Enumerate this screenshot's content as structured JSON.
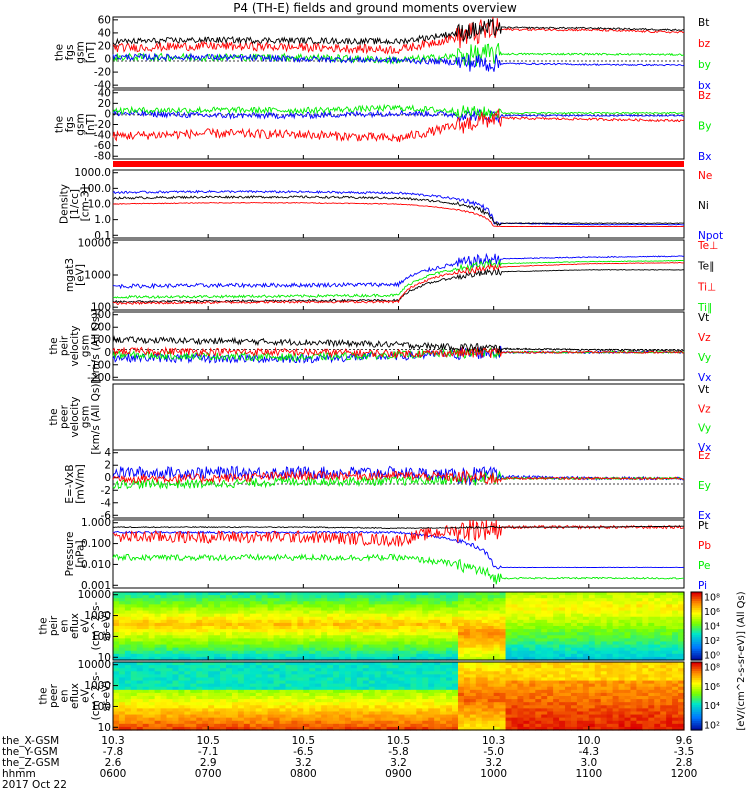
{
  "title": "P4 (TH-E) fields and ground moments overview",
  "colors": {
    "black": "#000000",
    "red": "#ff0000",
    "green": "#00ee00",
    "blue": "#0000ff"
  },
  "panels": [
    {
      "key": "fgs_gsm",
      "ylabel_lines": [
        "the",
        "fgs",
        "gsm",
        "[nT]"
      ],
      "ticks": [
        "60",
        "40",
        "20",
        "0",
        "-20",
        "-40"
      ],
      "legend": [
        {
          "text": "Bt",
          "color": "black"
        },
        {
          "text": "bz",
          "color": "red"
        },
        {
          "text": "by",
          "color": "green"
        },
        {
          "text": "bx",
          "color": "blue"
        }
      ]
    },
    {
      "key": "fgs_gsm2",
      "ylabel_lines": [
        "the",
        "fgs",
        "gsm",
        "[nT]"
      ],
      "ticks": [
        "40",
        "20",
        "0",
        "-20",
        "-40",
        "-60",
        "-80"
      ],
      "legend": [
        {
          "text": "Bz",
          "color": "red"
        },
        {
          "text": "By",
          "color": "green"
        },
        {
          "text": "Bx",
          "color": "blue"
        }
      ]
    },
    {
      "key": "density",
      "ylabel_lines": [
        "Density",
        "[1/cc]",
        "[cm-3]"
      ],
      "ticks": [
        "1000.0",
        "100.0",
        "10.0",
        "1.0",
        "0.1"
      ],
      "legend": [
        {
          "text": "Ne",
          "color": "red"
        },
        {
          "text": "Ni",
          "color": "black"
        },
        {
          "text": "Npot",
          "color": "blue"
        }
      ]
    },
    {
      "key": "temperature",
      "ylabel_lines": [
        "mgat3",
        "[eV]"
      ],
      "ticks": [
        "10000",
        "1000",
        "100"
      ],
      "legend": [
        {
          "text": "Te⊥",
          "color": "red"
        },
        {
          "text": "Te∥",
          "color": "black"
        },
        {
          "text": "Ti⊥",
          "color": "red"
        },
        {
          "text": "Ti∥",
          "color": "green"
        }
      ]
    },
    {
      "key": "peir_vel",
      "ylabel_lines": [
        "the",
        "peir",
        "velocity",
        "gsm",
        "[km/s (All Qs)]"
      ],
      "ticks": [
        "300",
        "200",
        "100",
        "0",
        "-100",
        "-200"
      ],
      "legend": [
        {
          "text": "Vt",
          "color": "black"
        },
        {
          "text": "Vz",
          "color": "red"
        },
        {
          "text": "Vy",
          "color": "green"
        },
        {
          "text": "Vx",
          "color": "blue"
        }
      ]
    },
    {
      "key": "peer_vel",
      "ylabel_lines": [
        "the",
        "peer",
        "velocity",
        "gsm",
        "[km/s (All Qs)]"
      ],
      "ticks": [],
      "legend": [
        {
          "text": "Vt",
          "color": "black"
        },
        {
          "text": "Vz",
          "color": "red"
        },
        {
          "text": "Vy",
          "color": "green"
        },
        {
          "text": "Vx",
          "color": "blue"
        }
      ]
    },
    {
      "key": "efield",
      "ylabel_lines": [
        "E=-VxB",
        "[mV/m]"
      ],
      "ticks": [
        "4",
        "2",
        "0",
        "-2",
        "-4",
        "-6"
      ],
      "legend": [
        {
          "text": "Ez",
          "color": "red"
        },
        {
          "text": "Ey",
          "color": "green"
        },
        {
          "text": "Ex",
          "color": "blue"
        }
      ]
    },
    {
      "key": "pressure",
      "ylabel_lines": [
        "Pressure",
        "[nPa]"
      ],
      "ticks": [
        "1.000",
        "0.100",
        "0.010",
        "0.001"
      ],
      "legend": [
        {
          "text": "Pt",
          "color": "black"
        },
        {
          "text": "Pb",
          "color": "red"
        },
        {
          "text": "Pe",
          "color": "green"
        },
        {
          "text": "Pi",
          "color": "blue"
        }
      ]
    },
    {
      "key": "peir_spec",
      "ylabel_lines": [
        "the",
        "peir",
        "en",
        "eflux",
        "eV",
        "(cm^2-s-",
        "sr-eV)"
      ],
      "ticks": [
        "10000",
        "1000",
        "100",
        "10"
      ],
      "legend": []
    },
    {
      "key": "peer_spec",
      "ylabel_lines": [
        "the",
        "peer",
        "en",
        "eflux",
        "eV",
        "(cm^2-s-",
        "sr-eV)"
      ],
      "ticks": [
        "10000",
        "1000",
        "100",
        "10"
      ],
      "legend": []
    }
  ],
  "colorbar": {
    "ticks": [
      "10⁸",
      "10⁶",
      "10⁴",
      "10²",
      "10⁰",
      "10⁸",
      "10⁶",
      "10⁴",
      "10²"
    ],
    "label": "[eV/(cm^2-s-sr-eV)] (All Qs)"
  },
  "xaxis": {
    "row_labels": [
      "the_X-GSM",
      "the_Y-GSM",
      "the_Z-GSM",
      "hhmm",
      "2017 Oct 22"
    ],
    "columns": [
      {
        "x": "10.3",
        "y": "-7.8",
        "z": "2.6",
        "t": "0600"
      },
      {
        "x": "10.5",
        "y": "-7.1",
        "z": "2.9",
        "t": "0700"
      },
      {
        "x": "10.5",
        "y": "-6.5",
        "z": "3.2",
        "t": "0800"
      },
      {
        "x": "10.5",
        "y": "-5.8",
        "z": "3.2",
        "t": "0900"
      },
      {
        "x": "10.3",
        "y": "-5.0",
        "z": "3.2",
        "t": "1000"
      },
      {
        "x": "10.0",
        "y": "-4.3",
        "z": "3.0",
        "t": "1100"
      },
      {
        "x": "9.6",
        "y": "-3.5",
        "z": "2.8",
        "t": "1200"
      }
    ]
  },
  "chart_data": {
    "type": "line",
    "title": "P4 (TH-E) fields and ground moments overview",
    "x": [
      "0600",
      "0700",
      "0800",
      "0900",
      "1000",
      "1100",
      "1200"
    ],
    "series": [
      {
        "name": "Bt",
        "values": [
          25,
          28,
          27,
          25,
          48,
          47,
          44
        ]
      },
      {
        "name": "bz",
        "values": [
          15,
          18,
          16,
          12,
          45,
          44,
          40
        ]
      },
      {
        "name": "by",
        "values": [
          0,
          0,
          0,
          -5,
          5,
          5,
          4
        ]
      },
      {
        "name": "bx",
        "values": [
          0,
          0,
          -3,
          -5,
          -10,
          -12,
          -13
        ]
      },
      {
        "name": "Bz",
        "values": [
          -45,
          -40,
          -42,
          -50,
          -10,
          -12,
          -15
        ]
      },
      {
        "name": "By",
        "values": [
          5,
          6,
          5,
          10,
          0,
          0,
          0
        ]
      },
      {
        "name": "Bx",
        "values": [
          0,
          -5,
          -5,
          0,
          -5,
          -5,
          -5
        ]
      },
      {
        "name": "Ne",
        "values": [
          10,
          12,
          12,
          10,
          0.3,
          0.3,
          0.3
        ]
      },
      {
        "name": "Ni",
        "values": [
          25,
          30,
          30,
          25,
          0.5,
          0.5,
          0.5
        ]
      },
      {
        "name": "Npot",
        "values": [
          60,
          70,
          65,
          55,
          0.5,
          0.4,
          0.4
        ]
      },
      {
        "name": "Te⊥",
        "values": [
          70,
          75,
          80,
          80,
          1500,
          2000,
          2200
        ]
      },
      {
        "name": "Te∥",
        "values": [
          80,
          85,
          90,
          90,
          1000,
          1200,
          1200
        ]
      },
      {
        "name": "Ti⊥",
        "values": [
          300,
          320,
          330,
          350,
          3000,
          3500,
          3800
        ]
      },
      {
        "name": "Ti∥",
        "values": [
          120,
          125,
          130,
          140,
          2000,
          2400,
          2600
        ]
      },
      {
        "name": "Vt",
        "values": [
          100,
          90,
          80,
          60,
          30,
          20,
          15
        ]
      },
      {
        "name": "Vz",
        "values": [
          10,
          5,
          0,
          -10,
          0,
          0,
          0
        ]
      },
      {
        "name": "Vy",
        "values": [
          -20,
          -30,
          -40,
          -20,
          0,
          0,
          0
        ]
      },
      {
        "name": "Vx",
        "values": [
          -40,
          -50,
          -50,
          -30,
          0,
          0,
          0
        ]
      },
      {
        "name": "Ez",
        "values": [
          0,
          0,
          0.5,
          0.5,
          0,
          0,
          0
        ]
      },
      {
        "name": "Ey",
        "values": [
          -1,
          -1,
          -0.5,
          -0.5,
          0,
          0,
          0
        ]
      },
      {
        "name": "Ex",
        "values": [
          1,
          1,
          1,
          1,
          0.3,
          0,
          0
        ]
      },
      {
        "name": "Pt",
        "values": [
          0.9,
          0.9,
          0.9,
          0.8,
          0.9,
          0.9,
          1.0
        ]
      },
      {
        "name": "Pb",
        "values": [
          0.3,
          0.3,
          0.3,
          0.2,
          0.9,
          0.9,
          0.9
        ]
      },
      {
        "name": "Pe",
        "values": [
          0.03,
          0.03,
          0.03,
          0.03,
          0.003,
          0.003,
          0.003
        ]
      },
      {
        "name": "Pi",
        "values": [
          0.5,
          0.5,
          0.5,
          0.5,
          0.01,
          0.01,
          0.01
        ]
      }
    ]
  }
}
